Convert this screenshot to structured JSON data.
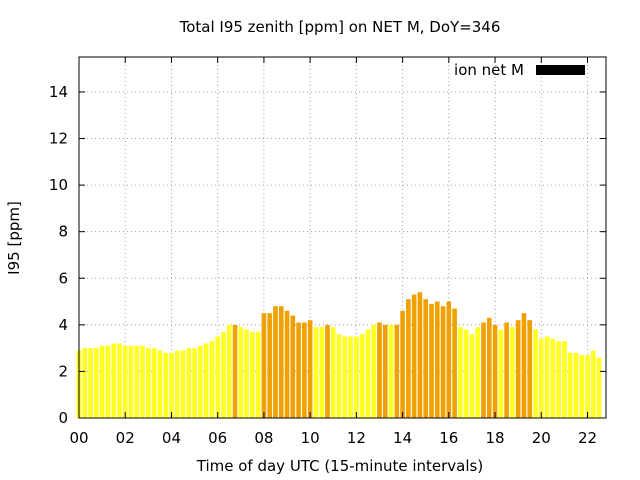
{
  "chart_data": {
    "type": "bar",
    "title": "Total I95 zenith [ppm] on NET M, DoY=346",
    "xlabel": "Time of day UTC (15-minute intervals)",
    "ylabel": "I95 [ppm]",
    "xlim": [
      0,
      22.8
    ],
    "ylim": [
      0,
      15.5
    ],
    "grid": true,
    "x_ticks": [
      {
        "value": 0,
        "label": "00"
      },
      {
        "value": 2,
        "label": "02"
      },
      {
        "value": 4,
        "label": "04"
      },
      {
        "value": 6,
        "label": "06"
      },
      {
        "value": 8,
        "label": "08"
      },
      {
        "value": 10,
        "label": "10"
      },
      {
        "value": 12,
        "label": "12"
      },
      {
        "value": 14,
        "label": "14"
      },
      {
        "value": 16,
        "label": "16"
      },
      {
        "value": 18,
        "label": "18"
      },
      {
        "value": 20,
        "label": "20"
      },
      {
        "value": 22,
        "label": "22"
      }
    ],
    "y_ticks": [
      {
        "value": 0,
        "label": "0"
      },
      {
        "value": 2,
        "label": "2"
      },
      {
        "value": 4,
        "label": "4"
      },
      {
        "value": 6,
        "label": "6"
      },
      {
        "value": 8,
        "label": "8"
      },
      {
        "value": 10,
        "label": "10"
      },
      {
        "value": 12,
        "label": "12"
      },
      {
        "value": 14,
        "label": "14"
      }
    ],
    "legend": {
      "label": "ion net M",
      "position": "top-right",
      "color": "#000000"
    },
    "colors": {
      "low": "#ffff20",
      "high": "#f0a000"
    },
    "interval_hours": 0.25,
    "series": [
      {
        "name": "ion net M",
        "values": [
          2.9,
          3.0,
          3.0,
          3.0,
          3.1,
          3.1,
          3.2,
          3.2,
          3.1,
          3.1,
          3.1,
          3.1,
          3.0,
          3.0,
          2.9,
          2.8,
          2.8,
          2.9,
          2.9,
          3.0,
          3.0,
          3.1,
          3.2,
          3.3,
          3.5,
          3.7,
          4.0,
          4.0,
          3.9,
          3.8,
          3.7,
          3.7,
          4.5,
          4.5,
          4.8,
          4.8,
          4.6,
          4.4,
          4.1,
          4.1,
          4.2,
          3.9,
          3.9,
          4.0,
          3.9,
          3.6,
          3.5,
          3.5,
          3.5,
          3.6,
          3.8,
          4.0,
          4.1,
          4.0,
          4.0,
          4.0,
          4.6,
          5.1,
          5.3,
          5.4,
          5.1,
          4.9,
          5.0,
          4.8,
          5.0,
          4.7,
          3.9,
          3.8,
          3.6,
          3.9,
          4.1,
          4.3,
          4.0,
          3.8,
          4.1,
          3.9,
          4.2,
          4.5,
          4.2,
          3.8,
          3.4,
          3.5,
          3.4,
          3.3,
          3.3,
          2.8,
          2.8,
          2.7,
          2.7,
          2.9,
          2.6
        ],
        "highlight": [
          0,
          0,
          0,
          0,
          0,
          0,
          0,
          0,
          0,
          0,
          0,
          0,
          0,
          0,
          0,
          0,
          0,
          0,
          0,
          0,
          0,
          0,
          0,
          0,
          0,
          0,
          0,
          1,
          0,
          0,
          0,
          0,
          1,
          1,
          1,
          1,
          1,
          1,
          1,
          1,
          1,
          0,
          0,
          1,
          0,
          0,
          0,
          0,
          0,
          0,
          0,
          0,
          1,
          1,
          0,
          1,
          1,
          1,
          1,
          1,
          1,
          1,
          1,
          1,
          1,
          1,
          0,
          0,
          0,
          0,
          1,
          1,
          1,
          0,
          1,
          0,
          1,
          1,
          1,
          0,
          0,
          0,
          0,
          0,
          0,
          0,
          0,
          0,
          0,
          0,
          0
        ]
      }
    ]
  }
}
